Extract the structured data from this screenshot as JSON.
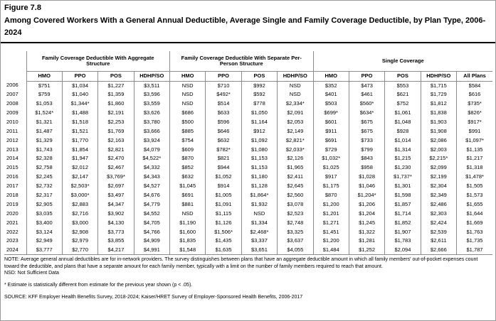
{
  "figure": {
    "label": "Figure 7.8",
    "title": "Among Covered Workers With a General Annual Deductible, Average Single and Family Coverage Deductible, by Plan Type, 2006-2024"
  },
  "table": {
    "groups": [
      {
        "label": "Family Coverage Deductible With Aggregate Structure",
        "span": 4
      },
      {
        "label": "Family Coverage Deductible With Separate Per-Person Structure",
        "span": 4
      },
      {
        "label": "Single Coverage",
        "span": 5
      }
    ],
    "columns": [
      "HMO",
      "PPO",
      "POS",
      "HDHP/SO",
      "HMO",
      "PPO",
      "POS",
      "HDHP/SO",
      "HMO",
      "PPO",
      "POS",
      "HDHP/SO",
      "All Plans"
    ],
    "rows": [
      {
        "year": "2006",
        "values": [
          "$751",
          "$1,034",
          "$1,227",
          "$3,511",
          "NSD",
          "$710",
          "$992",
          "NSD",
          "$352",
          "$473",
          "$553",
          "$1,715",
          "$584"
        ]
      },
      {
        "year": "2007",
        "values": [
          "$759",
          "$1,040",
          "$1,359",
          "$3,596",
          "NSD",
          "$492*",
          "$592",
          "NSD",
          "$401",
          "$461",
          "$621",
          "$1,729",
          "$616"
        ]
      },
      {
        "year": "2008",
        "values": [
          "$1,053",
          "$1,344*",
          "$1,860",
          "$3,559",
          "NSD",
          "$514",
          "$778",
          "$2,334*",
          "$503",
          "$560*",
          "$752",
          "$1,812",
          "$735*"
        ]
      },
      {
        "year": "2009",
        "values": [
          "$1,524*",
          "$1,488",
          "$2,191",
          "$3,626",
          "$686",
          "$633",
          "$1,050",
          "$2,091",
          "$699*",
          "$634*",
          "$1,061",
          "$1,838",
          "$826*"
        ]
      },
      {
        "year": "2010",
        "values": [
          "$1,321",
          "$1,518",
          "$2,253",
          "$3,780",
          "$500",
          "$596",
          "$1,164",
          "$2,053",
          "$601",
          "$675",
          "$1,048",
          "$1,903",
          "$917*"
        ]
      },
      {
        "year": "2011",
        "values": [
          "$1,487",
          "$1,521",
          "$1,769",
          "$3,666",
          "$885",
          "$646",
          "$912",
          "$2,149",
          "$911",
          "$675",
          "$928",
          "$1,908",
          "$991"
        ]
      },
      {
        "year": "2012",
        "values": [
          "$1,329",
          "$1,770",
          "$2,163",
          "$3,924",
          "$754",
          "$632",
          "$1,092",
          "$2,821*",
          "$691",
          "$733",
          "$1,014",
          "$2,086",
          "$1,097*"
        ]
      },
      {
        "year": "2013",
        "values": [
          "$1,743",
          "$1,854",
          "$2,821",
          "$4,079",
          "$609",
          "$782*",
          "$1,080",
          "$2,033*",
          "$729",
          "$799",
          "$1,314",
          "$2,003",
          "$1,135"
        ]
      },
      {
        "year": "2014",
        "values": [
          "$2,328",
          "$1,947",
          "$2,470",
          "$4,522*",
          "$870",
          "$821",
          "$1,153",
          "$2,126",
          "$1,032*",
          "$843",
          "$1,215",
          "$2,215*",
          "$1,217"
        ]
      },
      {
        "year": "2015",
        "values": [
          "$2,758",
          "$2,012",
          "$2,467",
          "$4,332",
          "$852",
          "$944",
          "$1,153",
          "$1,965",
          "$1,025",
          "$958",
          "$1,230",
          "$2,099",
          "$1,318"
        ]
      },
      {
        "year": "2016",
        "values": [
          "$2,245",
          "$2,147",
          "$3,769*",
          "$4,343",
          "$632",
          "$1,052",
          "$1,180",
          "$2,411",
          "$917",
          "$1,028",
          "$1,737*",
          "$2,199",
          "$1,478*"
        ]
      },
      {
        "year": "2017",
        "values": [
          "$2,732",
          "$2,503*",
          "$2,697",
          "$4,527",
          "$1,045",
          "$914",
          "$1,128",
          "$2,645",
          "$1,175",
          "$1,046",
          "$1,301",
          "$2,304",
          "$1,505"
        ]
      },
      {
        "year": "2018",
        "values": [
          "$2,317",
          "$3,000*",
          "$3,497",
          "$4,676",
          "$691",
          "$1,005",
          "$1,864*",
          "$2,560",
          "$870",
          "$1,204*",
          "$1,598",
          "$2,349",
          "$1,573"
        ]
      },
      {
        "year": "2019",
        "values": [
          "$2,905",
          "$2,883",
          "$4,347",
          "$4,779",
          "$881",
          "$1,091",
          "$1,932",
          "$3,078",
          "$1,200",
          "$1,206",
          "$1,857",
          "$2,486",
          "$1,655"
        ]
      },
      {
        "year": "2020",
        "values": [
          "$3,035",
          "$2,716",
          "$3,902",
          "$4,552",
          "NSD",
          "$1,115",
          "NSD",
          "$2,523",
          "$1,201",
          "$1,204",
          "$1,714",
          "$2,303",
          "$1,644"
        ]
      },
      {
        "year": "2021",
        "values": [
          "$3,400",
          "$3,000",
          "$4,130",
          "$4,705",
          "$1,190",
          "$1,126",
          "$1,334",
          "$2,748",
          "$1,271",
          "$1,245",
          "$1,852",
          "$2,424",
          "$1,669"
        ]
      },
      {
        "year": "2022",
        "values": [
          "$3,124",
          "$2,908",
          "$3,773",
          "$4,766",
          "$1,600",
          "$1,506*",
          "$2,468*",
          "$3,325",
          "$1,451",
          "$1,322",
          "$1,907",
          "$2,539",
          "$1,763"
        ]
      },
      {
        "year": "2023",
        "values": [
          "$2,949",
          "$2,979",
          "$3,855",
          "$4,909",
          "$1,835",
          "$1,435",
          "$3,337",
          "$3,637",
          "$1,200",
          "$1,281",
          "$1,783",
          "$2,611",
          "$1,735"
        ]
      },
      {
        "year": "2024",
        "values": [
          "$3,777",
          "$2,770",
          "$4,217",
          "$4,991",
          "$1,548",
          "$1,635",
          "$3,651",
          "$4,055",
          "$1,484",
          "$1,252",
          "$2,094",
          "$2,666",
          "$1,787"
        ]
      }
    ]
  },
  "notes": {
    "note": "NOTE: Average general annual deductibles are for in-network providers. The survey distinguishes between plans that have an aggregate deductible amount in which all family members' out-of-pocket expenses count toward the deductible, and plans that have a separate amount for each family member, typically with a limit on the number of family members required to reach that amount.",
    "nsd": "NSD: Not Sufficient Data",
    "footnote": "* Estimate is statistically different from estimate for the previous year shown (p < .05).",
    "source": "SOURCE: KFF Employer Health Benefits Survey, 2018-2024; Kaiser/HRET Survey of Employer-Sponsored Health Benefits, 2006-2017"
  }
}
